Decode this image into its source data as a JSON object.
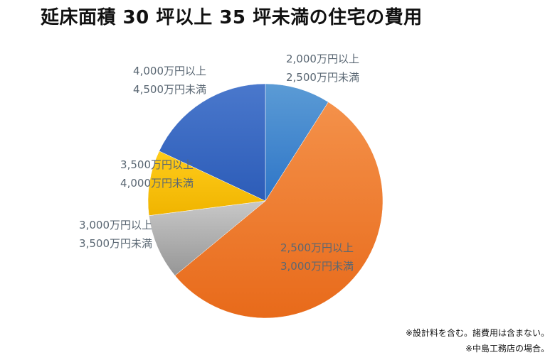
{
  "chart_data": {
    "type": "pie",
    "title": "延床面積 30 坪以上 35 坪未満の住宅の費用",
    "slices": [
      {
        "label_lines": [
          "2,000万円以上",
          "2,500万円未満"
        ],
        "value": 9,
        "color": "#5b9bd5",
        "color_dark": "#2e75c7"
      },
      {
        "label_lines": [
          "2,500万円以上",
          "3,000万円未満"
        ],
        "value": 55,
        "color": "#f4914a",
        "color_dark": "#e86a1a"
      },
      {
        "label_lines": [
          "3,000万円以上",
          "3,500万円未満"
        ],
        "value": 9,
        "color": "#c8c8c8",
        "color_dark": "#969696"
      },
      {
        "label_lines": [
          "3,500万円以上",
          "4,000万円未満"
        ],
        "value": 9,
        "color": "#ffcc1a",
        "color_dark": "#f0b400"
      },
      {
        "label_lines": [
          "4,000万円以上",
          "4,500万円未満"
        ],
        "value": 18,
        "color": "#4a78cc",
        "color_dark": "#2c5cb8"
      }
    ]
  },
  "notes": [
    "※設計料を含む。諸費用は含まない。",
    "※中島工務店の場合。"
  ]
}
